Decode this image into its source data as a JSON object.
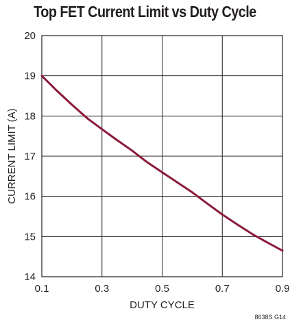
{
  "chart_data": {
    "type": "line",
    "title": "Top FET Current Limit vs Duty Cycle",
    "xlabel": "DUTY CYCLE",
    "ylabel": "CURRENT LIMIT (A)",
    "xlim": [
      0.1,
      0.9
    ],
    "ylim": [
      14,
      20
    ],
    "xticks": [
      "0.1",
      "0.3",
      "0.5",
      "0.7",
      "0.9"
    ],
    "yticks": [
      "14",
      "15",
      "16",
      "17",
      "18",
      "19",
      "20"
    ],
    "grid": true,
    "line_color": "#8b1a3a",
    "series": [
      {
        "x": [
          0.1,
          0.15,
          0.2,
          0.25,
          0.3,
          0.35,
          0.4,
          0.45,
          0.5,
          0.55,
          0.6,
          0.65,
          0.7,
          0.75,
          0.8,
          0.85,
          0.9
        ],
        "values": [
          19.0,
          18.63,
          18.28,
          17.95,
          17.67,
          17.4,
          17.14,
          16.85,
          16.6,
          16.35,
          16.1,
          15.82,
          15.55,
          15.3,
          15.06,
          14.85,
          14.65
        ]
      }
    ],
    "figure_code": "8638S G14"
  }
}
